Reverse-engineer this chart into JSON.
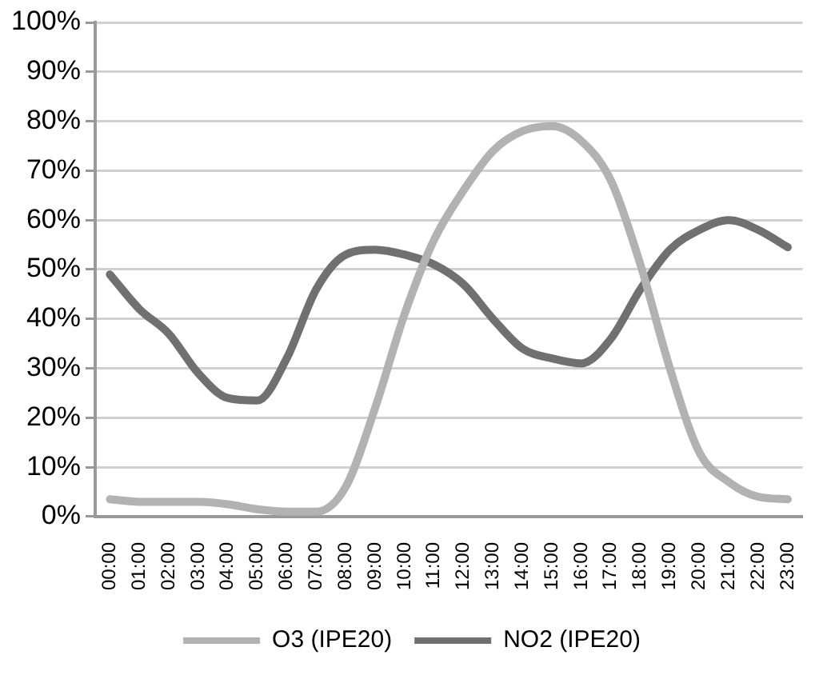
{
  "chart_data": {
    "type": "line",
    "categories": [
      "00:00",
      "01:00",
      "02:00",
      "03:00",
      "04:00",
      "05:00",
      "06:00",
      "07:00",
      "08:00",
      "09:00",
      "10:00",
      "11:00",
      "12:00",
      "13:00",
      "14:00",
      "15:00",
      "16:00",
      "17:00",
      "18:00",
      "19:00",
      "20:00",
      "21:00",
      "22:00",
      "23:00"
    ],
    "series": [
      {
        "name": "O3 (IPE20)",
        "color": "#b2b2b2",
        "values": [
          3.5,
          3,
          3,
          3,
          2.5,
          1.5,
          1,
          1,
          6,
          22,
          41,
          56,
          66,
          74,
          78,
          79,
          76,
          68,
          51,
          30,
          13,
          7,
          4,
          3.5
        ]
      },
      {
        "name": "NO2 (IPE20)",
        "color": "#707070",
        "values": [
          49,
          42,
          37,
          29,
          24,
          23.5,
          32,
          46,
          53,
          54,
          53,
          51,
          47,
          40,
          34,
          32,
          31,
          36,
          46,
          54,
          58,
          60,
          58,
          54.5
        ]
      }
    ],
    "ylim": [
      0,
      100
    ],
    "yticks": [
      {
        "value": 0,
        "label": "0%"
      },
      {
        "value": 10,
        "label": "10%"
      },
      {
        "value": 20,
        "label": "20%"
      },
      {
        "value": 30,
        "label": "30%"
      },
      {
        "value": 40,
        "label": "40%"
      },
      {
        "value": 50,
        "label": "50%"
      },
      {
        "value": 60,
        "label": "60%"
      },
      {
        "value": 70,
        "label": "70%"
      },
      {
        "value": 80,
        "label": "80%"
      },
      {
        "value": 90,
        "label": "90%"
      },
      {
        "value": 100,
        "label": "100%"
      }
    ],
    "grid": "y",
    "legend": "bottom",
    "marker": "none",
    "line_style": "solid"
  }
}
